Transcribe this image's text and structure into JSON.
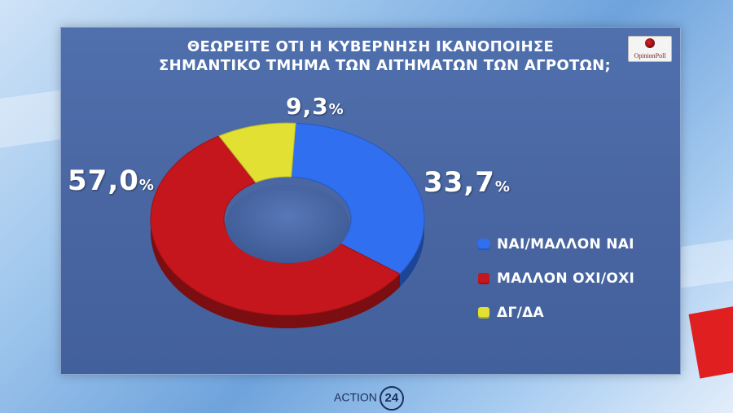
{
  "title_lines": [
    "ΘΕΩΡΕΙΤΕ ΟΤΙ Η ΚΥΒΕΡΝΗΣΗ ΙΚΑΝΟΠΟΙΗΣΕ",
    "ΣΗΜΑΝΤΙΚΟ ΤΜΗΜΑ ΤΩΝ ΑΙΤΗΜΑΤΩΝ ΤΩΝ ΑΓΡΟΤΩΝ;"
  ],
  "logo": {
    "text": "OpinionPoll"
  },
  "brand": {
    "text": "ACTION",
    "number": "24"
  },
  "chart_data": {
    "type": "pie",
    "style": "donut",
    "title": "ΘΕΩΡΕΙΤΕ ΟΤΙ Η ΚΥΒΕΡΝΗΣΗ ΙΚΑΝΟΠΟΙΗΣΕ ΣΗΜΑΝΤΙΚΟ ΤΜΗΜΑ ΤΩΝ ΑΙΤΗΜΑΤΩΝ ΤΩΝ ΑΓΡΟΤΩΝ;",
    "slices": [
      {
        "label": "ΝΑΙ/ΜΑΛΛΟΝ ΝΑΙ",
        "value": 33.7,
        "display": "33,7",
        "color": "#2f6ff0"
      },
      {
        "label": "ΜΑΛΛΟΝ ΟΧΙ/ΟΧΙ",
        "value": 57.0,
        "display": "57,0",
        "color": "#c4161c"
      },
      {
        "label": "ΔΓ/ΔΑ",
        "value": 9.3,
        "display": "9,3",
        "color": "#e2e032"
      }
    ],
    "unit": "%",
    "legend_position": "right"
  }
}
